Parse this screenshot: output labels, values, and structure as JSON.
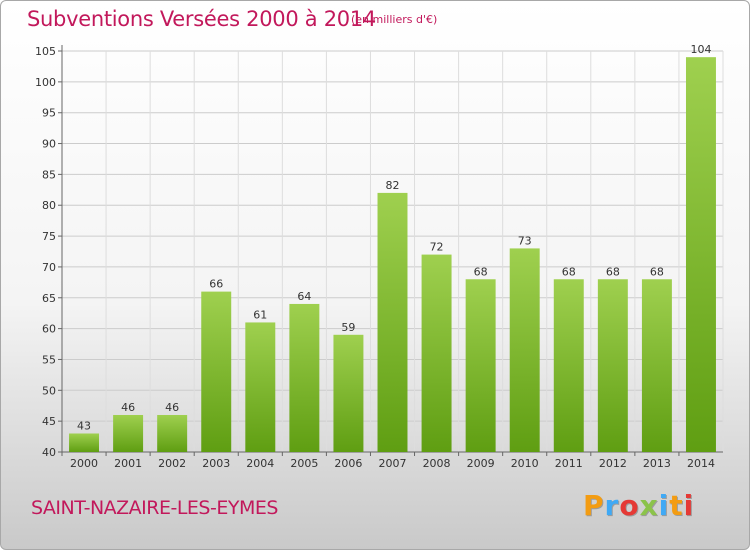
{
  "title": "Subventions Versées 2000 à 2014",
  "subtitle": "(en milliers d'€)",
  "town": "SAINT-NAZAIRE-LES-EYMES",
  "logo": {
    "letters": [
      "P",
      "r",
      "o",
      "x",
      "i",
      "t",
      "i"
    ],
    "colors": [
      "#f39c12",
      "#3fa9f5",
      "#e53935",
      "#8bc34a",
      "#3fa9f5",
      "#f39c12",
      "#e53935"
    ]
  },
  "colors": {
    "bar_top": "#9fd04f",
    "bar_bottom": "#5f9e12",
    "title": "#c2185b",
    "grid": "#cccccc"
  },
  "chart_data": {
    "type": "bar",
    "categories": [
      "2000",
      "2001",
      "2002",
      "2003",
      "2004",
      "2005",
      "2006",
      "2007",
      "2008",
      "2009",
      "2010",
      "2011",
      "2012",
      "2013",
      "2014"
    ],
    "values": [
      43,
      46,
      46,
      66,
      61,
      64,
      59,
      82,
      72,
      68,
      73,
      68,
      68,
      68,
      104
    ],
    "ylim": [
      40,
      105
    ],
    "yticks": [
      40,
      45,
      50,
      55,
      60,
      65,
      70,
      75,
      80,
      85,
      90,
      95,
      100,
      105
    ],
    "grid": true,
    "legend": "none"
  }
}
